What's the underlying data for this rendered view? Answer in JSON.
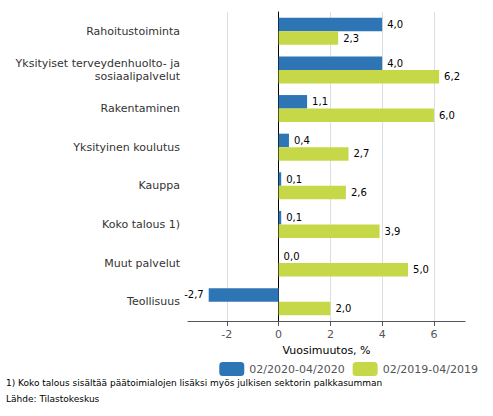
{
  "chart_data": {
    "type": "bar",
    "orientation": "horizontal",
    "categories": [
      "Rahoitustoiminta",
      "Yksityiset terveydenhuolto- ja\nsosiaalipalvelut",
      "Rakentaminen",
      "Yksityinen koulutus",
      "Kauppa",
      "Koko talous 1)",
      "Muut palvelut",
      "Teollisuus"
    ],
    "series": [
      {
        "name": "02/2020-04/2020",
        "color": "#2E75B6",
        "values": [
          4.0,
          4.0,
          1.1,
          0.4,
          0.1,
          0.1,
          0.0,
          -2.7
        ],
        "value_labels": [
          "4,0",
          "4,0",
          "1,1",
          "0,4",
          "0,1",
          "0,1",
          "0,0",
          "-2,7"
        ]
      },
      {
        "name": "02/2019-04/2019",
        "color": "#C6D848",
        "values": [
          2.3,
          6.2,
          6.0,
          2.7,
          2.6,
          3.9,
          5.0,
          2.0
        ],
        "value_labels": [
          "2,3",
          "6,2",
          "6,0",
          "2,7",
          "2,6",
          "3,9",
          "5,0",
          "2,0"
        ]
      }
    ],
    "xlabel": "Vuosimuutos, %",
    "xlim": [
      -3.5,
      7.2
    ],
    "xticks": [
      -2,
      0,
      2,
      4,
      6
    ],
    "grid": true,
    "legend": "lower right",
    "data_labels": true,
    "annotations": [
      "1) Koko talous sisältää päätoimialojen lisäksi myös julkisen sektorin palkkasumman",
      "Lähde: Tilastokeskus"
    ]
  }
}
